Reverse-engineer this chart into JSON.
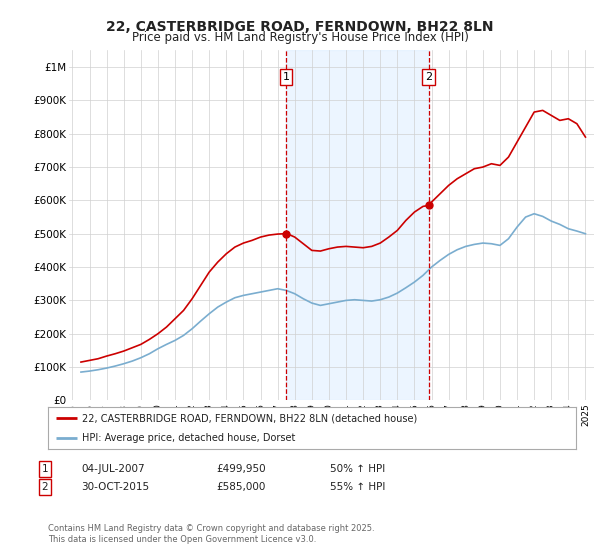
{
  "title": "22, CASTERBRIDGE ROAD, FERNDOWN, BH22 8LN",
  "subtitle": "Price paid vs. HM Land Registry's House Price Index (HPI)",
  "title_fontsize": 10,
  "subtitle_fontsize": 8.5,
  "ylim": [
    0,
    1050000
  ],
  "yticks": [
    0,
    100000,
    200000,
    300000,
    400000,
    500000,
    600000,
    700000,
    800000,
    900000,
    1000000
  ],
  "ytick_labels": [
    "£0",
    "£100K",
    "£200K",
    "£300K",
    "£400K",
    "£500K",
    "£600K",
    "£700K",
    "£800K",
    "£900K",
    "£1M"
  ],
  "xlim_start": 1994.8,
  "xlim_end": 2025.5,
  "xtick_years": [
    1995,
    1996,
    1997,
    1998,
    1999,
    2000,
    2001,
    2002,
    2003,
    2004,
    2005,
    2006,
    2007,
    2008,
    2009,
    2010,
    2011,
    2012,
    2013,
    2014,
    2015,
    2016,
    2017,
    2018,
    2019,
    2020,
    2021,
    2022,
    2023,
    2024,
    2025
  ],
  "red_line_color": "#cc0000",
  "blue_line_color": "#7aadcf",
  "vline_color": "#cc0000",
  "vline_style": "--",
  "sale1_x": 2007.5,
  "sale1_y": 499950,
  "sale1_label": "1",
  "sale2_x": 2015.83,
  "sale2_y": 585000,
  "sale2_label": "2",
  "shaded_region_color": "#ddeeff",
  "shaded_alpha": 0.55,
  "legend_label_red": "22, CASTERBRIDGE ROAD, FERNDOWN, BH22 8LN (detached house)",
  "legend_label_blue": "HPI: Average price, detached house, Dorset",
  "table_entries": [
    {
      "num": "1",
      "date": "04-JUL-2007",
      "price": "£499,950",
      "hpi": "50% ↑ HPI"
    },
    {
      "num": "2",
      "date": "30-OCT-2015",
      "price": "£585,000",
      "hpi": "55% ↑ HPI"
    }
  ],
  "footer_text": "Contains HM Land Registry data © Crown copyright and database right 2025.\nThis data is licensed under the Open Government Licence v3.0.",
  "background_color": "#ffffff",
  "plot_bg_color": "#ffffff",
  "red_data": {
    "x": [
      1995.5,
      1996.0,
      1996.5,
      1997.0,
      1997.5,
      1998.0,
      1998.5,
      1999.0,
      1999.5,
      2000.0,
      2000.5,
      2001.0,
      2001.5,
      2002.0,
      2002.5,
      2003.0,
      2003.5,
      2004.0,
      2004.5,
      2005.0,
      2005.5,
      2006.0,
      2006.5,
      2007.0,
      2007.4,
      2007.5,
      2007.6,
      2008.0,
      2008.5,
      2009.0,
      2009.5,
      2010.0,
      2010.5,
      2011.0,
      2011.5,
      2012.0,
      2012.5,
      2013.0,
      2013.5,
      2014.0,
      2014.5,
      2015.0,
      2015.5,
      2015.83,
      2016.0,
      2016.5,
      2017.0,
      2017.5,
      2018.0,
      2018.5,
      2019.0,
      2019.5,
      2020.0,
      2020.5,
      2021.0,
      2021.5,
      2022.0,
      2022.5,
      2023.0,
      2023.5,
      2024.0,
      2024.5,
      2025.0
    ],
    "y": [
      115000,
      120000,
      125000,
      133000,
      140000,
      148000,
      158000,
      168000,
      183000,
      200000,
      220000,
      245000,
      270000,
      305000,
      345000,
      385000,
      415000,
      440000,
      460000,
      472000,
      480000,
      490000,
      496000,
      499000,
      499950,
      499950,
      499000,
      490000,
      470000,
      450000,
      448000,
      455000,
      460000,
      462000,
      460000,
      458000,
      462000,
      472000,
      490000,
      510000,
      540000,
      565000,
      582000,
      585000,
      595000,
      620000,
      645000,
      665000,
      680000,
      695000,
      700000,
      710000,
      705000,
      730000,
      775000,
      820000,
      865000,
      870000,
      855000,
      840000,
      845000,
      830000,
      790000
    ]
  },
  "blue_data": {
    "x": [
      1995.5,
      1996.0,
      1996.5,
      1997.0,
      1997.5,
      1998.0,
      1998.5,
      1999.0,
      1999.5,
      2000.0,
      2000.5,
      2001.0,
      2001.5,
      2002.0,
      2002.5,
      2003.0,
      2003.5,
      2004.0,
      2004.5,
      2005.0,
      2005.5,
      2006.0,
      2006.5,
      2007.0,
      2007.5,
      2008.0,
      2008.5,
      2009.0,
      2009.5,
      2010.0,
      2010.5,
      2011.0,
      2011.5,
      2012.0,
      2012.5,
      2013.0,
      2013.5,
      2014.0,
      2014.5,
      2015.0,
      2015.5,
      2016.0,
      2016.5,
      2017.0,
      2017.5,
      2018.0,
      2018.5,
      2019.0,
      2019.5,
      2020.0,
      2020.5,
      2021.0,
      2021.5,
      2022.0,
      2022.5,
      2023.0,
      2023.5,
      2024.0,
      2024.5,
      2025.0
    ],
    "y": [
      85000,
      88000,
      92000,
      97000,
      103000,
      110000,
      118000,
      128000,
      140000,
      155000,
      168000,
      180000,
      195000,
      215000,
      238000,
      260000,
      280000,
      295000,
      308000,
      315000,
      320000,
      325000,
      330000,
      335000,
      330000,
      320000,
      305000,
      292000,
      285000,
      290000,
      295000,
      300000,
      302000,
      300000,
      298000,
      302000,
      310000,
      322000,
      338000,
      355000,
      375000,
      400000,
      420000,
      438000,
      452000,
      462000,
      468000,
      472000,
      470000,
      465000,
      485000,
      520000,
      550000,
      560000,
      552000,
      538000,
      528000,
      515000,
      508000,
      500000
    ]
  }
}
